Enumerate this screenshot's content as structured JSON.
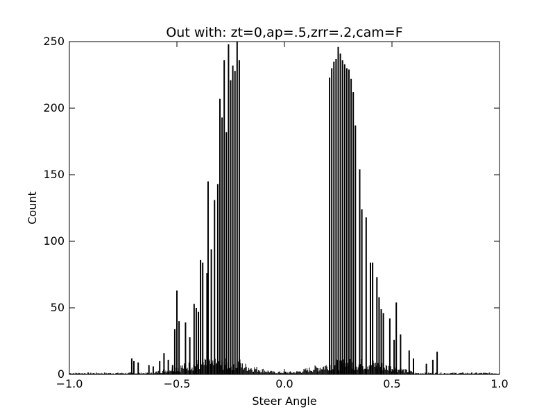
{
  "chart_data": {
    "type": "bar",
    "title": "Out with: zt=0,ap=.5,zrr=.2,cam=F",
    "xlabel": "Steer Angle",
    "ylabel": "Count",
    "xlim": [
      -1.0,
      1.0
    ],
    "ylim": [
      0,
      250
    ],
    "x_ticks": [
      -1.0,
      -0.5,
      0.0,
      0.5,
      1.0
    ],
    "x_tick_labels": [
      "−1.0",
      "−0.5",
      "0.0",
      "0.5",
      "1.0"
    ],
    "y_ticks": [
      0,
      50,
      100,
      150,
      200,
      250
    ],
    "y_tick_labels": [
      "0",
      "50",
      "100",
      "150",
      "200",
      "250"
    ],
    "grid": false,
    "bar_color": "#000000",
    "x": [
      -0.71,
      -0.7,
      -0.68,
      -0.63,
      -0.61,
      -0.58,
      -0.56,
      -0.54,
      -0.52,
      -0.51,
      -0.5,
      -0.49,
      -0.46,
      -0.44,
      -0.42,
      -0.41,
      -0.4,
      -0.39,
      -0.38,
      -0.36,
      -0.355,
      -0.34,
      -0.325,
      -0.31,
      -0.3,
      -0.29,
      -0.28,
      -0.27,
      -0.26,
      -0.25,
      -0.24,
      -0.23,
      -0.22,
      -0.21,
      0.21,
      0.22,
      0.23,
      0.24,
      0.25,
      0.26,
      0.27,
      0.28,
      0.29,
      0.3,
      0.31,
      0.32,
      0.33,
      0.35,
      0.36,
      0.38,
      0.4,
      0.41,
      0.43,
      0.44,
      0.45,
      0.46,
      0.49,
      0.51,
      0.52,
      0.54,
      0.58,
      0.6,
      0.66,
      0.69,
      0.71
    ],
    "values": [
      12,
      10,
      9,
      7,
      6,
      10,
      16,
      11,
      7,
      34,
      63,
      40,
      39,
      28,
      53,
      50,
      47,
      86,
      84,
      76,
      145,
      94,
      131,
      143,
      207,
      193,
      236,
      182,
      248,
      221,
      232,
      228,
      250,
      236,
      223,
      230,
      235,
      237,
      246,
      241,
      236,
      233,
      230,
      229,
      222,
      212,
      187,
      154,
      124,
      118,
      84,
      84,
      73,
      58,
      49,
      46,
      42,
      26,
      54,
      30,
      18,
      12,
      8,
      11,
      17
    ]
  }
}
